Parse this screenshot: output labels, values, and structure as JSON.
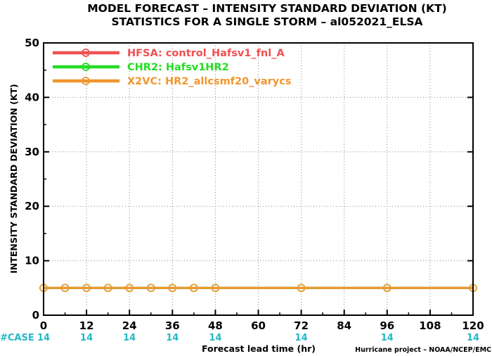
{
  "chart_data": {
    "type": "line",
    "title": "MODEL FORECAST – INTENSITY STANDARD DEVIATION (KT)",
    "subtitle": "STATISTICS FOR A SINGLE STORM – al052021_ELSA",
    "xlabel": "Forecast lead time (hr)",
    "ylabel": "INTENSITY STANDARD DEVIATION (KT)",
    "xlim": [
      0,
      120
    ],
    "ylim": [
      0,
      50
    ],
    "x_ticks": [
      0,
      12,
      24,
      36,
      48,
      60,
      72,
      84,
      96,
      108,
      120
    ],
    "y_ticks": [
      0,
      10,
      20,
      30,
      40,
      50
    ],
    "grid": true,
    "legend_position": "top-left",
    "x": [
      0,
      6,
      12,
      18,
      24,
      30,
      36,
      42,
      48,
      72,
      96,
      120
    ],
    "series": [
      {
        "name": "HFSA: control_Hafsv1_fnl_A",
        "color": "#f05050",
        "values": [
          5,
          5,
          5,
          5,
          5,
          5,
          5,
          5,
          5,
          5,
          5,
          5
        ]
      },
      {
        "name": "CHR2: Hafsv1HR2",
        "color": "#22dd22",
        "values": [
          5,
          5,
          5,
          5,
          5,
          5,
          5,
          5,
          5,
          5,
          5,
          5
        ]
      },
      {
        "name": "X2VC: HR2_allcsmf20_varycs",
        "color": "#f0962e",
        "values": [
          5,
          5,
          5,
          5,
          5,
          5,
          5,
          5,
          5,
          5,
          5,
          5
        ]
      }
    ],
    "cases_label": "#CASE",
    "cases_color": "#22b8c8",
    "cases": [
      {
        "x": 0,
        "n": "14"
      },
      {
        "x": 12,
        "n": "14"
      },
      {
        "x": 24,
        "n": "14"
      },
      {
        "x": 36,
        "n": "14"
      },
      {
        "x": 48,
        "n": "14"
      },
      {
        "x": 72,
        "n": "14"
      },
      {
        "x": 96,
        "n": "14"
      },
      {
        "x": 120,
        "n": "14"
      }
    ]
  },
  "credit": "Hurricane project – NOAA/NCEP/EMC"
}
